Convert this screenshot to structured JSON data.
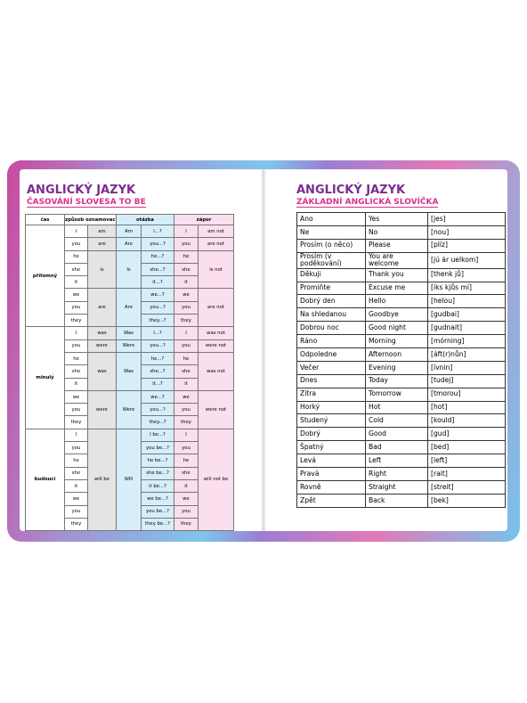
{
  "left_page": {
    "title": "ANGLICKÝ JAZYK",
    "subtitle": "ČASOVÁNÍ SLOVESA TO BE",
    "table": {
      "headers": [
        "čas",
        "způsob oznamovací",
        "otázka",
        "zápor"
      ],
      "tenses": [
        {
          "name": "přítomný",
          "groups": [
            {
              "pronouns": [
                "I"
              ],
              "verb": "am",
              "question_verb": "Am",
              "questions": [
                "I...?"
              ],
              "negative": "am not"
            },
            {
              "pronouns": [
                "you"
              ],
              "verb": "are",
              "question_verb": "Are",
              "questions": [
                "you...?"
              ],
              "negative": "are not"
            },
            {
              "pronouns": [
                "he",
                "she",
                "it"
              ],
              "verb": "is",
              "question_verb": "Is",
              "questions": [
                "he...?",
                "she...?",
                "it...?"
              ],
              "negative": "is not"
            },
            {
              "pronouns": [
                "we",
                "you",
                "they"
              ],
              "verb": "are",
              "question_verb": "Are",
              "questions": [
                "we...?",
                "you...?",
                "they...?"
              ],
              "negative": "are not"
            }
          ]
        },
        {
          "name": "minulý",
          "groups": [
            {
              "pronouns": [
                "I"
              ],
              "verb": "was",
              "question_verb": "Was",
              "questions": [
                "I...?"
              ],
              "negative": "was not"
            },
            {
              "pronouns": [
                "you"
              ],
              "verb": "were",
              "question_verb": "Were",
              "questions": [
                "you...?"
              ],
              "negative": "were not"
            },
            {
              "pronouns": [
                "he",
                "she",
                "it"
              ],
              "verb": "was",
              "question_verb": "Was",
              "questions": [
                "he...?",
                "she...?",
                "it...?"
              ],
              "negative": "was not"
            },
            {
              "pronouns": [
                "we",
                "you",
                "they"
              ],
              "verb": "were",
              "question_verb": "Were",
              "questions": [
                "we...?",
                "you...?",
                "they...?"
              ],
              "negative": "were not"
            }
          ]
        },
        {
          "name": "budoucí",
          "groups": [
            {
              "pronouns": [
                "I",
                "you",
                "he",
                "she",
                "it",
                "we",
                "you",
                "they"
              ],
              "verb": "will be",
              "question_verb": "Will",
              "questions": [
                "I be...?",
                "you be...?",
                "he be...?",
                "she be...?",
                "it be...?",
                "we be...?",
                "you be...?",
                "they be...?"
              ],
              "negative": "will not be"
            }
          ]
        }
      ]
    }
  },
  "right_page": {
    "title": "ANGLICKÝ JAZYK",
    "subtitle": "ZÁKLADNÍ ANGLICKÁ SLOVÍČKA",
    "table": {
      "rows": [
        [
          "Ano",
          "Yes",
          "[jes]"
        ],
        [
          "Ne",
          "No",
          "[nou]"
        ],
        [
          "Prosím (o něco)",
          "Please",
          "[plíz]"
        ],
        [
          "Prosím (v poděkování)",
          "You are welcome",
          "[jú ár uelkom]"
        ],
        [
          "Děkuji",
          "Thank you",
          "[thenk jů]"
        ],
        [
          "Promiňte",
          "Excuse me",
          "[iks kjůs mí]"
        ],
        [
          "Dobrý den",
          "Hello",
          "[helou]"
        ],
        [
          "Na shledanou",
          "Goodbye",
          "[gudbai]"
        ],
        [
          "Dobrou noc",
          "Good night",
          "[gudnait]"
        ],
        [
          "Ráno",
          "Morning",
          "[mórning]"
        ],
        [
          "Odpoledne",
          "Afternoon",
          "[áft(r)nůn]"
        ],
        [
          "Večer",
          "Evening",
          "[ívnin]"
        ],
        [
          "Dnes",
          "Today",
          "[tudej]"
        ],
        [
          "Zítra",
          "Tomorrow",
          "[tmorou]"
        ],
        [
          "Horký",
          "Hot",
          "[hot]"
        ],
        [
          "Studený",
          "Cold",
          "[kould]"
        ],
        [
          "Dobrý",
          "Good",
          "[gud]"
        ],
        [
          "Špatný",
          "Bad",
          "[bed]"
        ],
        [
          "Levá",
          "Left",
          "[left]"
        ],
        [
          "Pravá",
          "Right",
          "[rait]"
        ],
        [
          "Rovně",
          "Straight",
          "[streit]"
        ],
        [
          "Zpět",
          "Back",
          "[bek]"
        ]
      ]
    }
  }
}
